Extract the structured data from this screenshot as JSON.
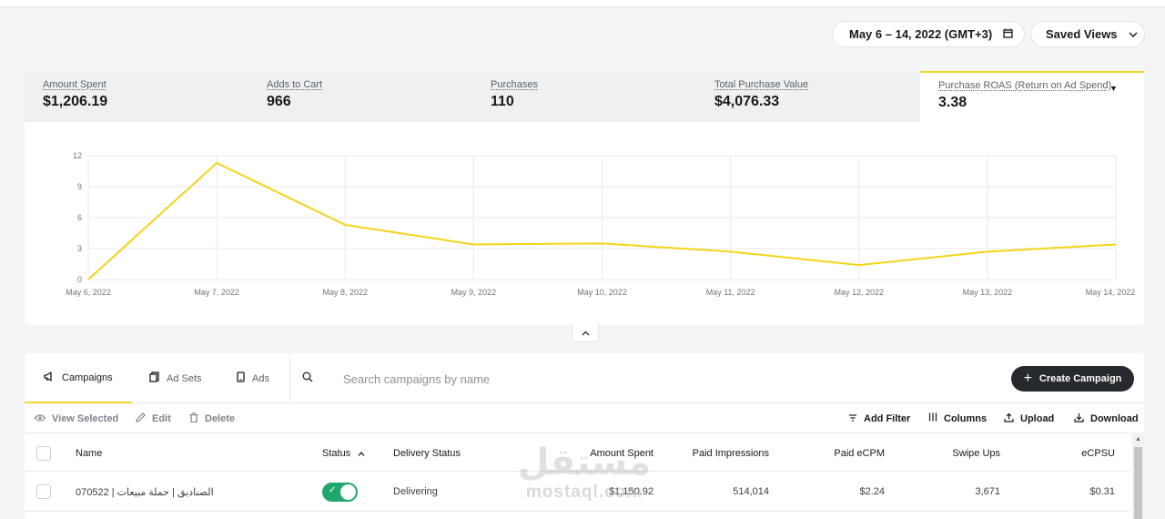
{
  "header": {
    "date_range": "May 6 – 14, 2022 (GMT+3)",
    "saved_views": "Saved Views"
  },
  "metrics": [
    {
      "label": "Amount Spent",
      "value": "$1,206.19"
    },
    {
      "label": "Adds to Cart",
      "value": "966"
    },
    {
      "label": "Purchases",
      "value": "110"
    },
    {
      "label": "Total Purchase Value",
      "value": "$4,076.33"
    },
    {
      "label": "Purchase ROAS (Return on Ad Spend)",
      "value": "3.38"
    }
  ],
  "chart_data": {
    "type": "line",
    "title": "Purchase ROAS (Return on Ad Spend)",
    "x": [
      "May 6, 2022",
      "May 7, 2022",
      "May 8, 2022",
      "May 9, 2022",
      "May 10, 2022",
      "May 11, 2022",
      "May 12, 2022",
      "May 13, 2022",
      "May 14, 2022"
    ],
    "series": [
      {
        "name": "Purchase ROAS",
        "values": [
          0,
          11.3,
          5.3,
          3.4,
          3.5,
          2.7,
          1.4,
          2.7,
          3.4
        ]
      }
    ],
    "yticks": [
      "0",
      "3",
      "6",
      "9",
      "12"
    ],
    "ylim": [
      0,
      12
    ],
    "color": "#f5d416",
    "grid": true
  },
  "tabs": [
    {
      "label": "Campaigns",
      "icon": "megaphone-icon"
    },
    {
      "label": "Ad Sets",
      "icon": "copy-icon"
    },
    {
      "label": "Ads",
      "icon": "phone-icon"
    }
  ],
  "search": {
    "placeholder": "Search campaigns by name"
  },
  "create_button": "Create Campaign",
  "toolbar_left": [
    {
      "label": "View Selected",
      "icon": "eye-icon"
    },
    {
      "label": "Edit",
      "icon": "pencil-icon"
    },
    {
      "label": "Delete",
      "icon": "trash-icon"
    }
  ],
  "toolbar_right": [
    {
      "label": "Add Filter",
      "icon": "filter-icon"
    },
    {
      "label": "Columns",
      "icon": "columns-icon"
    },
    {
      "label": "Upload",
      "icon": "upload-icon"
    },
    {
      "label": "Download",
      "icon": "download-icon"
    }
  ],
  "table": {
    "columns": [
      "Name",
      "Status",
      "Delivery Status",
      "Amount Spent",
      "Paid Impressions",
      "Paid eCPM",
      "Swipe Ups",
      "eCPSU"
    ],
    "rows": [
      {
        "name": "070522 | الصناديق | حملة مبيعات",
        "status_on": true,
        "delivery_status": "Delivering",
        "amount_spent": "$1,150.92",
        "paid_impressions": "514,014",
        "paid_ecpm": "$2.24",
        "swipe_ups": "3,671",
        "ecpsu": "$0.31"
      }
    ]
  },
  "watermark": {
    "arabic": "مستقل",
    "latin": "mostaql.com"
  },
  "colors": {
    "accent": "#f0d728",
    "toggle_on": "#21a66b",
    "primary_button": "#262a2e"
  }
}
